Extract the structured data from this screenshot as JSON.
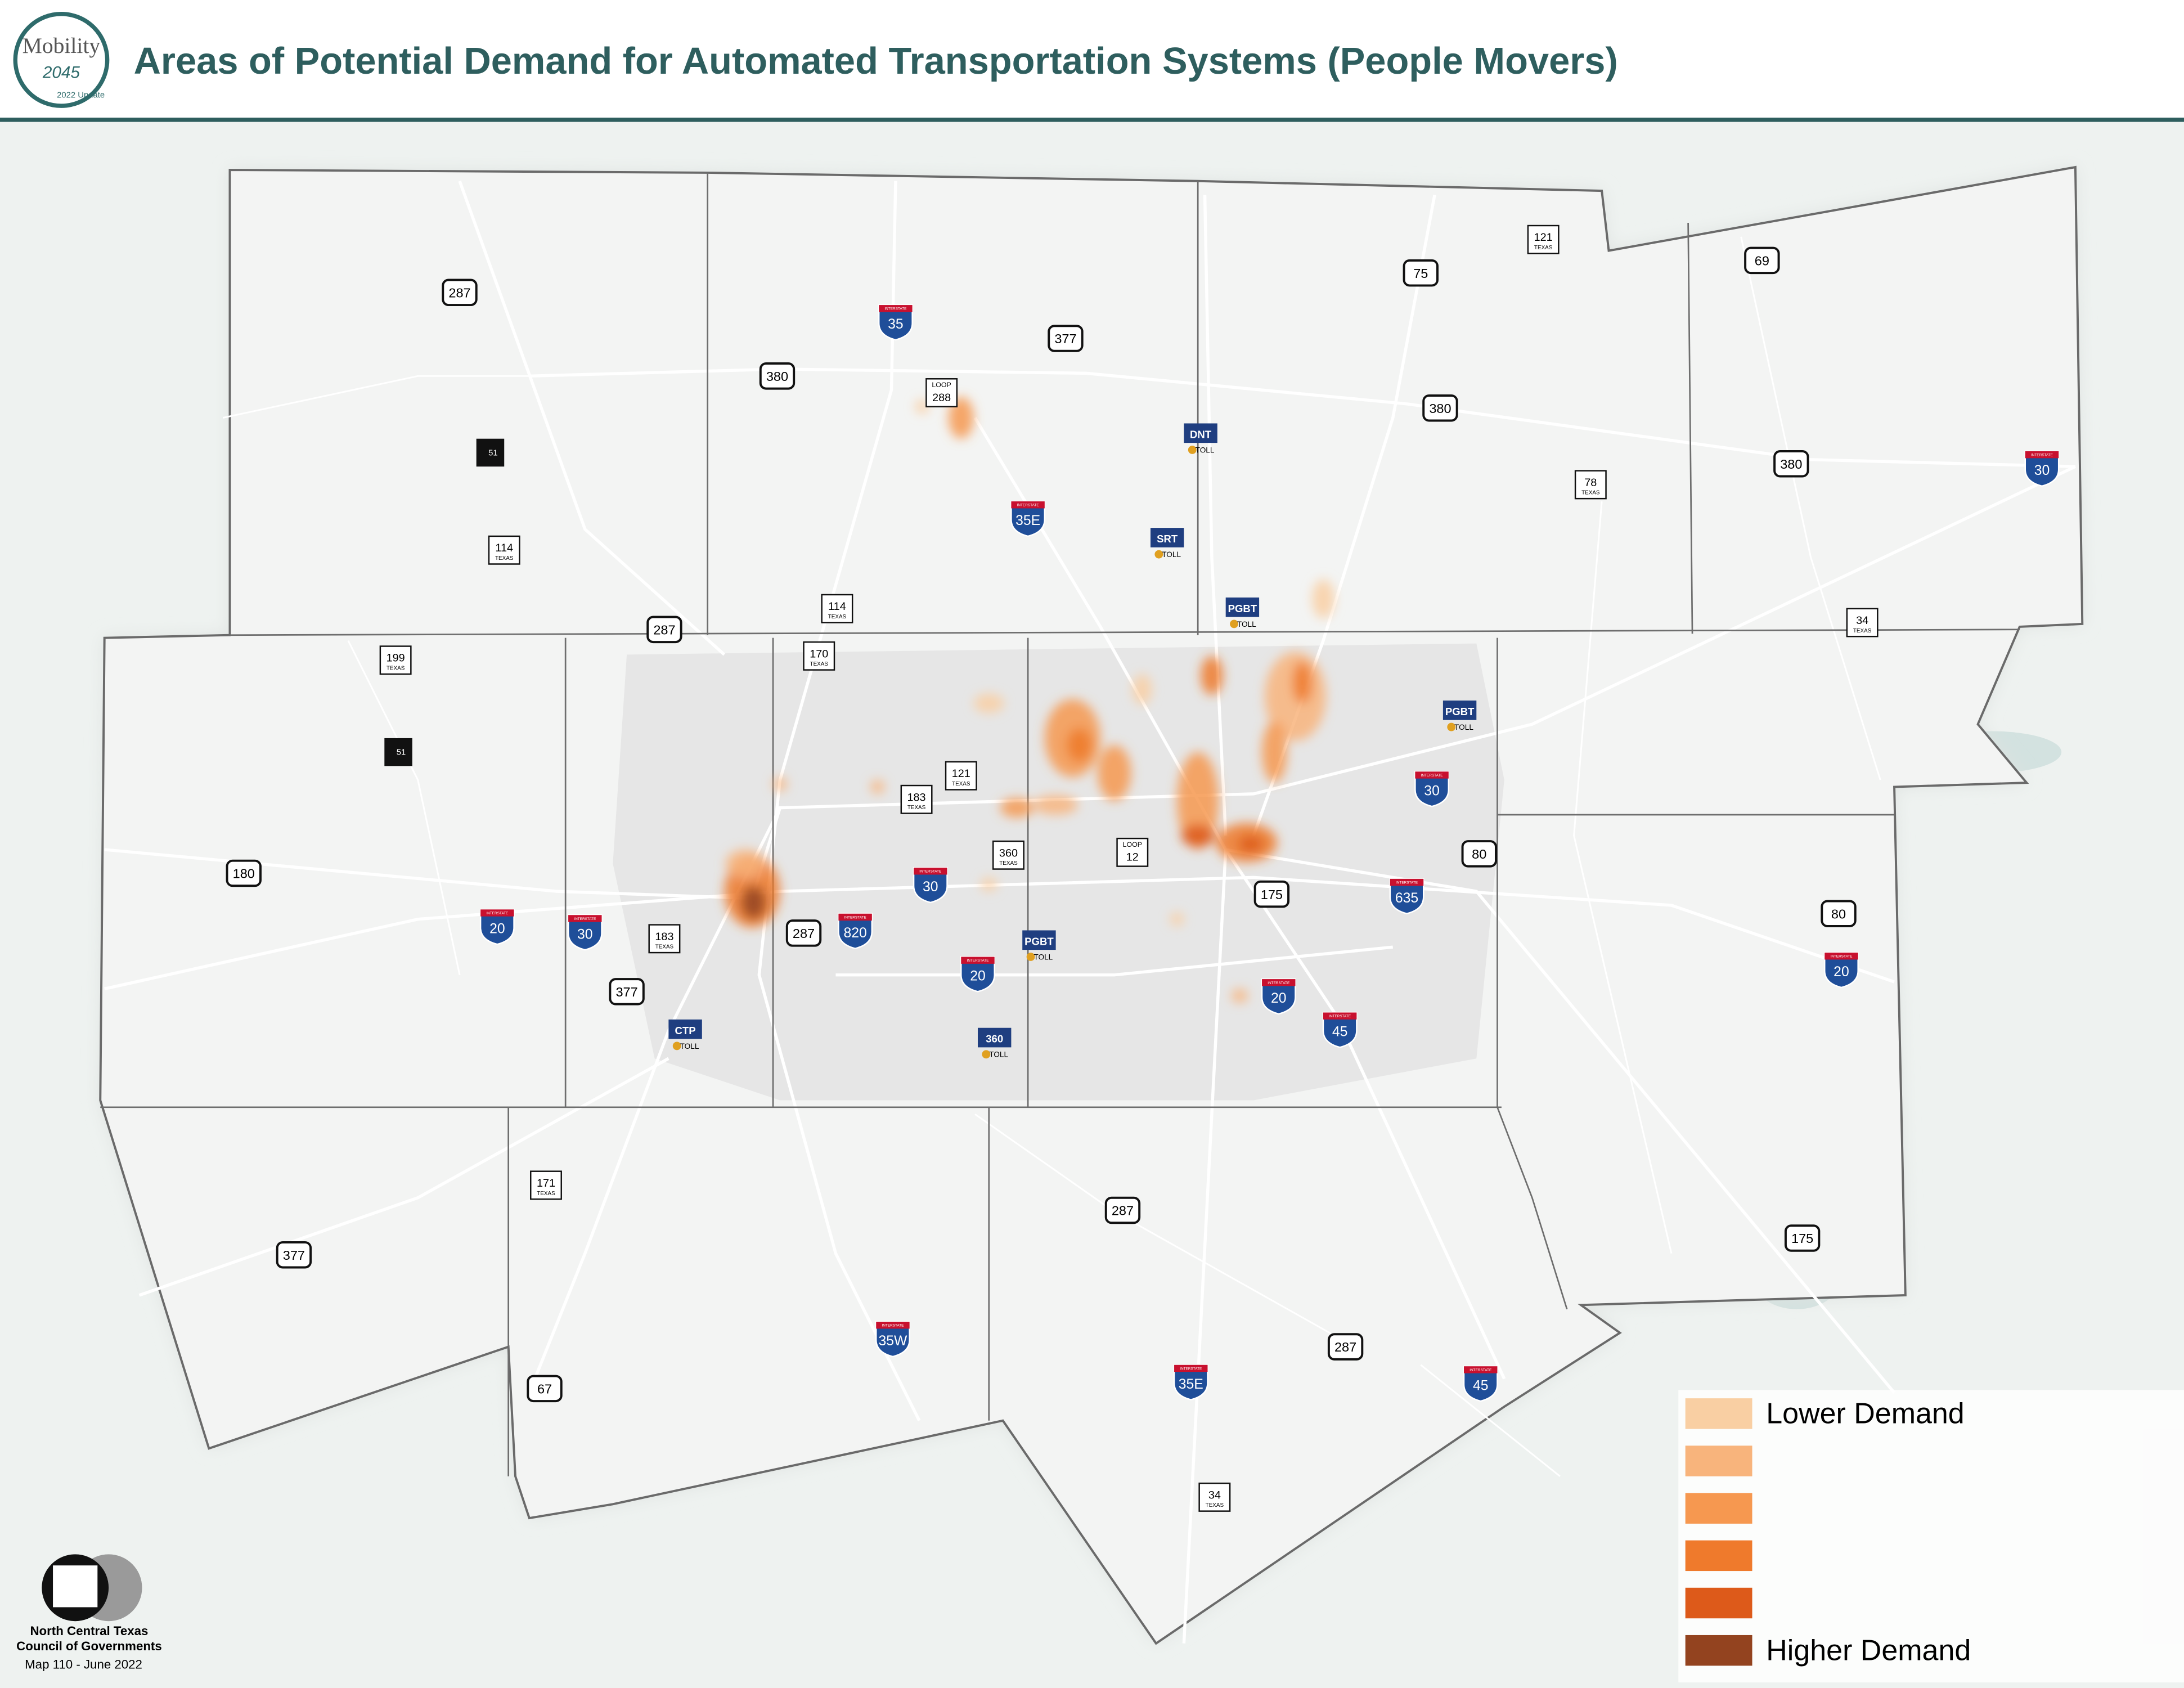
{
  "header": {
    "title": "Areas of Potential Demand for Automated Transportation Systems (People Movers)",
    "logo": {
      "word": "Mobility",
      "year": "2045",
      "update": "2022 Update"
    }
  },
  "shields": [
    {
      "kind": "us",
      "label": "287"
    },
    {
      "kind": "interstate",
      "top": "INTERSTATE",
      "label": "35"
    },
    {
      "kind": "loop",
      "top": "LOOP",
      "label": "288"
    },
    {
      "kind": "us",
      "label": "377"
    },
    {
      "kind": "us",
      "label": "380"
    },
    {
      "kind": "us",
      "label": "75"
    },
    {
      "kind": "state",
      "label": "121",
      "sub": "TEXAS"
    },
    {
      "kind": "us",
      "label": "69"
    },
    {
      "kind": "us",
      "label": "380"
    },
    {
      "kind": "toll",
      "label": "DNT",
      "sub": "TOLL"
    },
    {
      "kind": "texas",
      "label": "51"
    },
    {
      "kind": "interstate",
      "top": "INTERSTATE",
      "label": "35E"
    },
    {
      "kind": "state",
      "label": "78",
      "sub": "TEXAS"
    },
    {
      "kind": "us",
      "label": "380"
    },
    {
      "kind": "interstate",
      "top": "INTERSTATE",
      "label": "30"
    },
    {
      "kind": "toll",
      "label": "SRT",
      "sub": "TOLL"
    },
    {
      "kind": "state",
      "label": "114",
      "sub": "TEXAS"
    },
    {
      "kind": "state",
      "label": "114",
      "sub": "TEXAS"
    },
    {
      "kind": "toll",
      "label": "PGBT",
      "sub": "TOLL"
    },
    {
      "kind": "us",
      "label": "287"
    },
    {
      "kind": "state",
      "label": "170",
      "sub": "TEXAS"
    },
    {
      "kind": "state",
      "label": "34",
      "sub": "TEXAS"
    },
    {
      "kind": "state",
      "label": "199",
      "sub": "TEXAS"
    },
    {
      "kind": "toll",
      "label": "PGBT",
      "sub": "TOLL"
    },
    {
      "kind": "texas",
      "label": "51"
    },
    {
      "kind": "state",
      "label": "121",
      "sub": "TEXAS"
    },
    {
      "kind": "state",
      "label": "183",
      "sub": "TEXAS"
    },
    {
      "kind": "interstate",
      "top": "INTERSTATE",
      "label": "30"
    },
    {
      "kind": "state",
      "label": "360",
      "sub": "TEXAS"
    },
    {
      "kind": "loop",
      "top": "LOOP",
      "label": "12"
    },
    {
      "kind": "us",
      "label": "80"
    },
    {
      "kind": "us",
      "label": "180"
    },
    {
      "kind": "interstate",
      "top": "INTERSTATE",
      "label": "30"
    },
    {
      "kind": "us",
      "label": "175"
    },
    {
      "kind": "interstate",
      "top": "INTERSTATE",
      "label": "635"
    },
    {
      "kind": "interstate",
      "top": "INTERSTATE",
      "label": "20"
    },
    {
      "kind": "interstate",
      "top": "INTERSTATE",
      "label": "30"
    },
    {
      "kind": "state",
      "label": "183",
      "sub": "TEXAS"
    },
    {
      "kind": "us",
      "label": "287"
    },
    {
      "kind": "interstate",
      "top": "INTERSTATE",
      "label": "820"
    },
    {
      "kind": "us",
      "label": "80"
    },
    {
      "kind": "toll",
      "label": "PGBT",
      "sub": "TOLL"
    },
    {
      "kind": "interstate",
      "top": "INTERSTATE",
      "label": "20"
    },
    {
      "kind": "interstate",
      "top": "INTERSTATE",
      "label": "20"
    },
    {
      "kind": "us",
      "label": "377"
    },
    {
      "kind": "interstate",
      "top": "INTERSTATE",
      "label": "20"
    },
    {
      "kind": "interstate",
      "top": "INTERSTATE",
      "label": "45"
    },
    {
      "kind": "toll",
      "label": "CTP",
      "sub": "TOLL"
    },
    {
      "kind": "toll",
      "label": "360",
      "sub": "TOLL"
    },
    {
      "kind": "state",
      "label": "171",
      "sub": "TEXAS"
    },
    {
      "kind": "us",
      "label": "287"
    },
    {
      "kind": "us",
      "label": "175"
    },
    {
      "kind": "us",
      "label": "377"
    },
    {
      "kind": "interstate",
      "top": "INTERSTATE",
      "label": "35W"
    },
    {
      "kind": "us",
      "label": "287"
    },
    {
      "kind": "interstate",
      "top": "INTERSTATE",
      "label": "35E"
    },
    {
      "kind": "interstate",
      "top": "INTERSTATE",
      "label": "45"
    },
    {
      "kind": "us",
      "label": "67"
    },
    {
      "kind": "state",
      "label": "34",
      "sub": "TEXAS"
    }
  ],
  "legend": {
    "items": [
      {
        "color": "#f9cfa3",
        "label": "Lower Demand"
      },
      {
        "color": "#f8b47c",
        "label": null
      },
      {
        "color": "#f69850",
        "label": null
      },
      {
        "color": "#ef7a2c",
        "label": null
      },
      {
        "color": "#dd5a1a",
        "label": null
      },
      {
        "color": "#93431f",
        "label": "Higher Demand"
      }
    ]
  },
  "footer": {
    "org_line1": "North Central Texas",
    "org_line2": "Council of Governments",
    "map_id": "Map 110 - June 2022"
  }
}
